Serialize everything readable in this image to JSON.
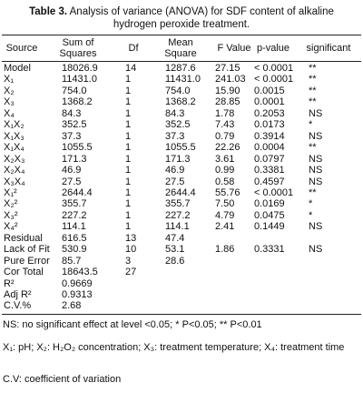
{
  "caption": {
    "label": "Table 3.",
    "text": "Analysis of variance (ANOVA) for SDF content of alkaline hydrogen peroxide treatment."
  },
  "table": {
    "columns": {
      "source": "Source",
      "ss": "Sum of Squares",
      "df": "Df",
      "ms": "Mean Square",
      "f": "F Value",
      "p": "p-value",
      "sig": "significant"
    },
    "rows": [
      {
        "source": "Model",
        "ss": "18026.9",
        "df": "14",
        "ms": "1287.6",
        "f": "27.15",
        "p": "< 0.0001",
        "sig": "**"
      },
      {
        "source": "X₁",
        "ss": "11431.0",
        "df": "1",
        "ms": "11431.0",
        "f": "241.03",
        "p": "< 0.0001",
        "sig": "**"
      },
      {
        "source": "X₂",
        "ss": "754.0",
        "df": "1",
        "ms": "754.0",
        "f": "15.90",
        "p": "0.0015",
        "sig": "**"
      },
      {
        "source": "X₃",
        "ss": "1368.2",
        "df": "1",
        "ms": "1368.2",
        "f": "28.85",
        "p": "0.0001",
        "sig": "**"
      },
      {
        "source": "X₄",
        "ss": "84.3",
        "df": "1",
        "ms": "84.3",
        "f": "1.78",
        "p": "0.2053",
        "sig": "NS"
      },
      {
        "source": "X₁X₂",
        "ss": "352.5",
        "df": "1",
        "ms": "352.5",
        "f": "7.43",
        "p": "0.0173",
        "sig": "*"
      },
      {
        "source": "X₁X₃",
        "ss": "37.3",
        "df": "1",
        "ms": "37.3",
        "f": "0.79",
        "p": "0.3914",
        "sig": "NS"
      },
      {
        "source": "X₁X₄",
        "ss": "1055.5",
        "df": "1",
        "ms": "1055.5",
        "f": "22.26",
        "p": "0.0004",
        "sig": "**"
      },
      {
        "source": "X₂X₃",
        "ss": "171.3",
        "df": "1",
        "ms": "171.3",
        "f": "3.61",
        "p": "0.0797",
        "sig": "NS"
      },
      {
        "source": "X₂X₄",
        "ss": "46.9",
        "df": "1",
        "ms": "46.9",
        "f": "0.99",
        "p": "0.3381",
        "sig": "NS"
      },
      {
        "source": "X₃X₄",
        "ss": "27.5",
        "df": "1",
        "ms": "27.5",
        "f": "0.58",
        "p": "0.4597",
        "sig": "NS"
      },
      {
        "source": "X₁²",
        "ss": "2644.4",
        "df": "1",
        "ms": "2644.4",
        "f": "55.76",
        "p": "< 0.0001",
        "sig": "**"
      },
      {
        "source": "X₂²",
        "ss": "355.7",
        "df": "1",
        "ms": "355.7",
        "f": "7.50",
        "p": "0.0169",
        "sig": "*"
      },
      {
        "source": "X₃²",
        "ss": "227.2",
        "df": "1",
        "ms": "227.2",
        "f": "4.79",
        "p": "0.0475",
        "sig": "*"
      },
      {
        "source": "X₄²",
        "ss": "114.1",
        "df": "1",
        "ms": "114.1",
        "f": "2.41",
        "p": "0.1449",
        "sig": "NS"
      },
      {
        "source": "Residual",
        "ss": "616.5",
        "df": "13",
        "ms": "47.4"
      },
      {
        "source": "Lack of Fit",
        "ss": "530.9",
        "df": "10",
        "ms": "53.1",
        "f": "1.86",
        "p": "0.3331",
        "sig": "NS"
      },
      {
        "source": "Pure Error",
        "ss": "85.7",
        "df": "3",
        "ms": "28.6"
      },
      {
        "source": "Cor Total",
        "ss": "18643.5",
        "df": "27"
      },
      {
        "source": "R²",
        "ss": "0.9669"
      },
      {
        "source": "Adj R²",
        "ss": "0.9313"
      },
      {
        "source": "C.V.%",
        "ss": "2.68"
      }
    ]
  },
  "notes": [
    "NS: no significant effect at level <0.05; * P<0.05; ** P<0.01",
    "X₁: pH; X₂: H₂O₂ concentration; X₃: treatment temperature; X₄: treatment time",
    "C.V: coefficient of variation"
  ]
}
